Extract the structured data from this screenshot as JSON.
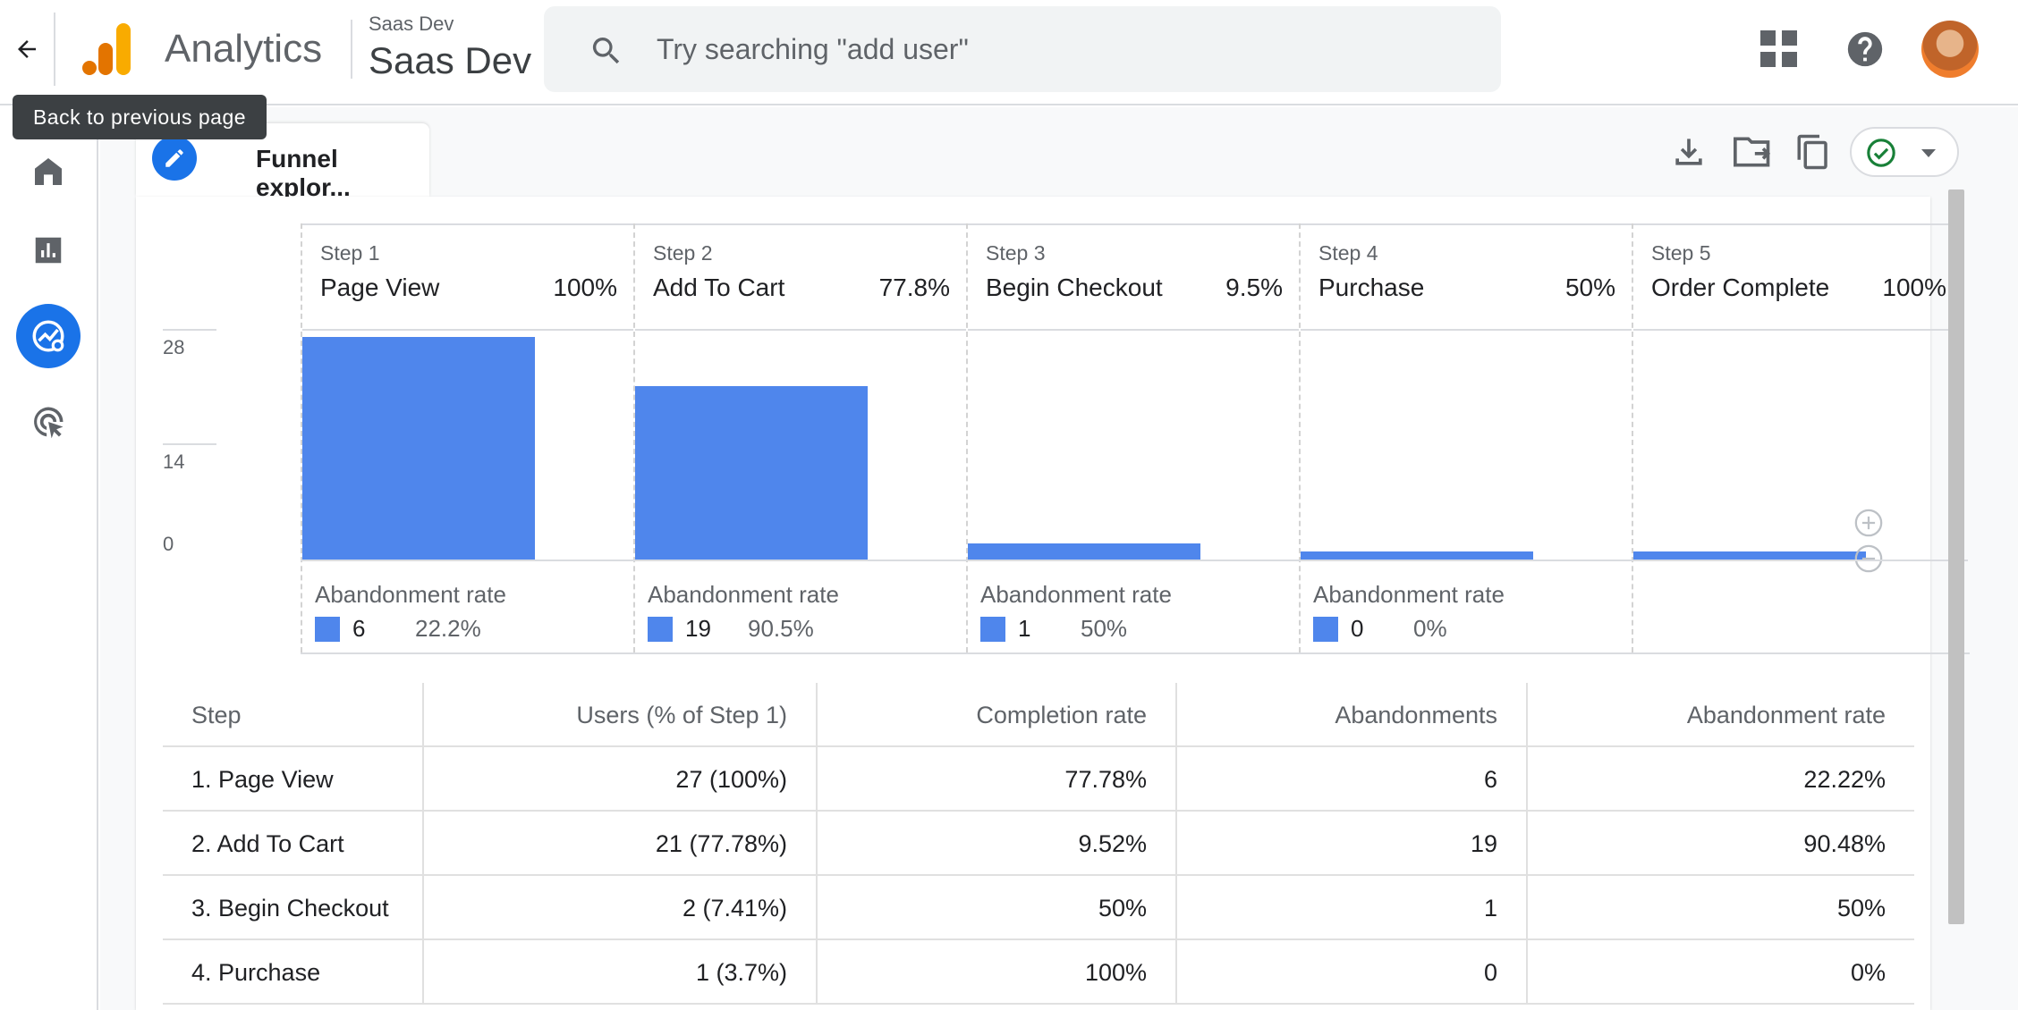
{
  "header": {
    "back_tooltip": "Back to previous page",
    "app_name": "Analytics",
    "account_small": "Saas Dev",
    "property_name": "Saas Dev",
    "search_placeholder": "Try searching \"add user\""
  },
  "nav": {
    "items": [
      {
        "name": "home",
        "icon": "home-icon"
      },
      {
        "name": "reports",
        "icon": "bar-chart-icon"
      },
      {
        "name": "explore",
        "icon": "explore-icon",
        "active": true
      },
      {
        "name": "advertising",
        "icon": "target-cursor-icon"
      }
    ]
  },
  "tab": {
    "label": "Funnel explor..."
  },
  "toolbar": {
    "icons": [
      "download-icon",
      "share-folder-icon",
      "copy-icon",
      "check-circle-icon",
      "dropdown-arrow-icon"
    ]
  },
  "chart_data": {
    "type": "bar",
    "categories": [
      "Page View",
      "Add To Cart",
      "Begin Checkout",
      "Purchase",
      "Order Complete"
    ],
    "step_labels": [
      "Step 1",
      "Step 2",
      "Step 3",
      "Step 4",
      "Step 5"
    ],
    "completion_pct": [
      "100%",
      "77.8%",
      "9.5%",
      "50%",
      "100%"
    ],
    "values": [
      27,
      21,
      2,
      1,
      1
    ],
    "y_ticks": [
      "28",
      "14",
      "0"
    ],
    "ylim": [
      0,
      28
    ],
    "abandonment_label": "Abandonment rate",
    "abandonments": [
      {
        "count": "6",
        "rate": "22.2%"
      },
      {
        "count": "19",
        "rate": "90.5%"
      },
      {
        "count": "1",
        "rate": "50%"
      },
      {
        "count": "0",
        "rate": "0%"
      }
    ],
    "color": "#4f86ec"
  },
  "table": {
    "headers": [
      "Step",
      "Users (% of Step 1)",
      "Completion rate",
      "Abandonments",
      "Abandonment rate"
    ],
    "rows": [
      [
        "1. Page View",
        "27 (100%)",
        "77.78%",
        "6",
        "22.22%"
      ],
      [
        "2. Add To Cart",
        "21 (77.78%)",
        "9.52%",
        "19",
        "90.48%"
      ],
      [
        "3. Begin Checkout",
        "2 (7.41%)",
        "50%",
        "1",
        "50%"
      ],
      [
        "4. Purchase",
        "1 (3.7%)",
        "100%",
        "0",
        "0%"
      ]
    ]
  }
}
